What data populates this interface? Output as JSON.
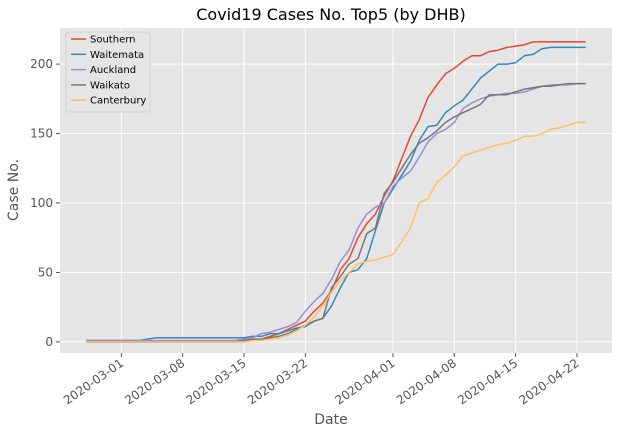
{
  "chart_data": {
    "type": "line",
    "title": "Covid19 Cases No. Top5 (by DHB)",
    "xlabel": "Date",
    "ylabel": "Case No.",
    "x_start": "2020-02-26",
    "xlim": [
      "2020-02-23",
      "2020-04-26"
    ],
    "ylim": [
      -8,
      226
    ],
    "x_ticks": [
      "2020-03-01",
      "2020-03-08",
      "2020-03-15",
      "2020-03-22",
      "2020-04-01",
      "2020-04-08",
      "2020-04-15",
      "2020-04-22"
    ],
    "y_ticks": [
      0,
      50,
      100,
      150,
      200
    ],
    "grid": true,
    "legend_position": "top-left",
    "series": [
      {
        "name": "Southern",
        "color": "#E24A33",
        "values": [
          0,
          0,
          0,
          0,
          0,
          0,
          0,
          0,
          0,
          0,
          0,
          0,
          0,
          0,
          0,
          0,
          0,
          0,
          0,
          1,
          2,
          4,
          6,
          9,
          12,
          15,
          22,
          28,
          37,
          52,
          60,
          75,
          85,
          92,
          105,
          116,
          132,
          148,
          160,
          176,
          185,
          193,
          197,
          202,
          206,
          206,
          209,
          210,
          212,
          213,
          214,
          216,
          216,
          216,
          216,
          216,
          216,
          216
        ]
      },
      {
        "name": "Waitemata",
        "color": "#348ABD",
        "values": [
          1,
          1,
          1,
          1,
          1,
          1,
          1,
          2,
          3,
          3,
          3,
          3,
          3,
          3,
          3,
          3,
          3,
          3,
          3,
          4,
          4,
          6,
          6,
          8,
          10,
          11,
          15,
          17,
          26,
          39,
          50,
          52,
          60,
          80,
          100,
          110,
          120,
          130,
          145,
          155,
          156,
          165,
          170,
          174,
          182,
          190,
          195,
          200,
          200,
          201,
          206,
          207,
          211,
          212,
          212,
          212,
          212,
          212
        ]
      },
      {
        "name": "Auckland",
        "color": "#988ED5",
        "values": [
          1,
          1,
          1,
          1,
          1,
          1,
          1,
          1,
          1,
          1,
          1,
          1,
          1,
          1,
          1,
          1,
          1,
          1,
          2,
          3,
          6,
          7,
          9,
          11,
          14,
          22,
          29,
          35,
          45,
          58,
          66,
          82,
          92,
          97,
          100,
          112,
          118,
          123,
          133,
          144,
          150,
          153,
          158,
          168,
          172,
          175,
          177,
          178,
          179,
          179,
          180,
          182,
          184,
          185,
          185,
          185,
          186,
          186
        ]
      },
      {
        "name": "Waikato",
        "color": "#777777",
        "values": [
          0,
          0,
          0,
          0,
          0,
          0,
          0,
          0,
          0,
          0,
          0,
          0,
          0,
          0,
          0,
          0,
          0,
          0,
          1,
          2,
          2,
          3,
          4,
          6,
          9,
          12,
          15,
          17,
          39,
          47,
          56,
          60,
          78,
          82,
          107,
          115,
          125,
          135,
          143,
          147,
          152,
          158,
          162,
          165,
          168,
          171,
          178,
          178,
          178,
          180,
          182,
          183,
          184,
          184,
          185,
          186,
          186,
          186
        ]
      },
      {
        "name": "Canterbury",
        "color": "#FBC15E",
        "values": [
          0,
          0,
          0,
          0,
          0,
          0,
          0,
          0,
          0,
          0,
          0,
          0,
          0,
          0,
          0,
          0,
          0,
          0,
          0,
          1,
          1,
          2,
          3,
          5,
          8,
          12,
          18,
          26,
          36,
          44,
          50,
          56,
          58,
          59,
          61,
          63,
          72,
          82,
          100,
          103,
          115,
          120,
          126,
          134,
          136,
          138,
          140,
          142,
          143,
          145,
          148,
          148,
          150,
          153,
          154,
          156,
          158,
          158
        ]
      }
    ]
  }
}
